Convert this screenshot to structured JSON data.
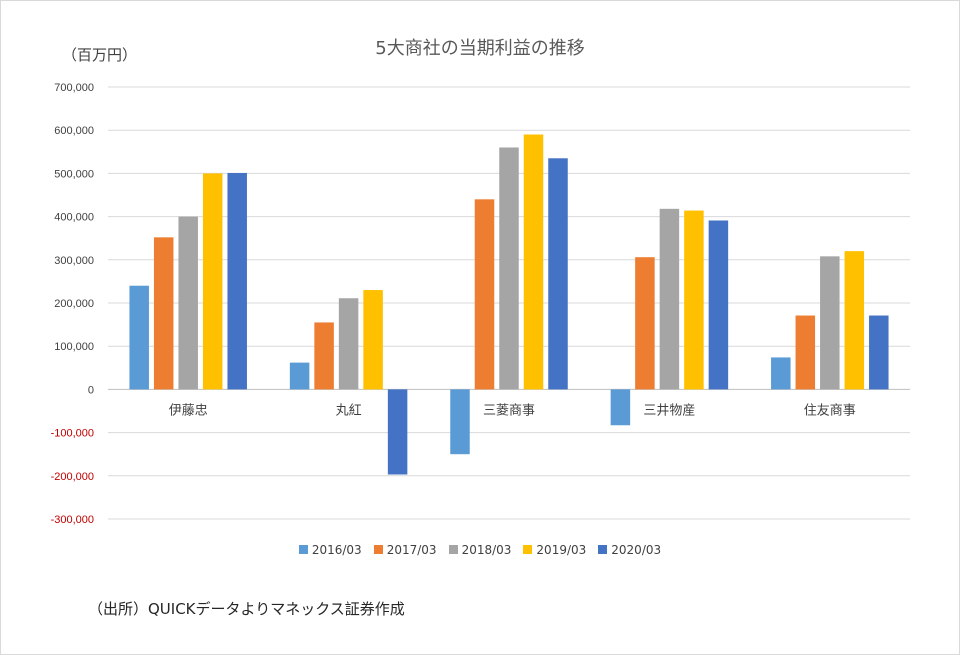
{
  "chart_data": {
    "type": "bar",
    "title": "5大商社の当期利益の推移",
    "unit_label": "（百万円）",
    "source_note": "（出所）QUICKデータよりマネックス証券作成",
    "categories": [
      "伊藤忠",
      "丸紅",
      "三菱商事",
      "三井物産",
      "住友商事"
    ],
    "series": [
      {
        "name": "2016/03",
        "color": "#5B9BD5",
        "values": [
          240000,
          62000,
          -150000,
          -83000,
          74000
        ]
      },
      {
        "name": "2017/03",
        "color": "#ED7D31",
        "values": [
          352000,
          155000,
          440000,
          306000,
          171000
        ]
      },
      {
        "name": "2018/03",
        "color": "#A5A5A5",
        "values": [
          400000,
          211000,
          560000,
          418000,
          308000
        ]
      },
      {
        "name": "2019/03",
        "color": "#FFC000",
        "values": [
          500000,
          230000,
          590000,
          414000,
          320000
        ]
      },
      {
        "name": "2020/03",
        "color": "#4472C4",
        "values": [
          501000,
          -197000,
          535000,
          391000,
          171000
        ]
      }
    ],
    "yticks": [
      "700,000",
      "600,000",
      "500,000",
      "400,000",
      "300,000",
      "200,000",
      "100,000",
      "0",
      "-100,000",
      "-200,000",
      "-300,000"
    ],
    "ylim": [
      -300000,
      700000
    ],
    "negative_tick_color": "#C00000",
    "grid": true,
    "legend": "bottom"
  }
}
